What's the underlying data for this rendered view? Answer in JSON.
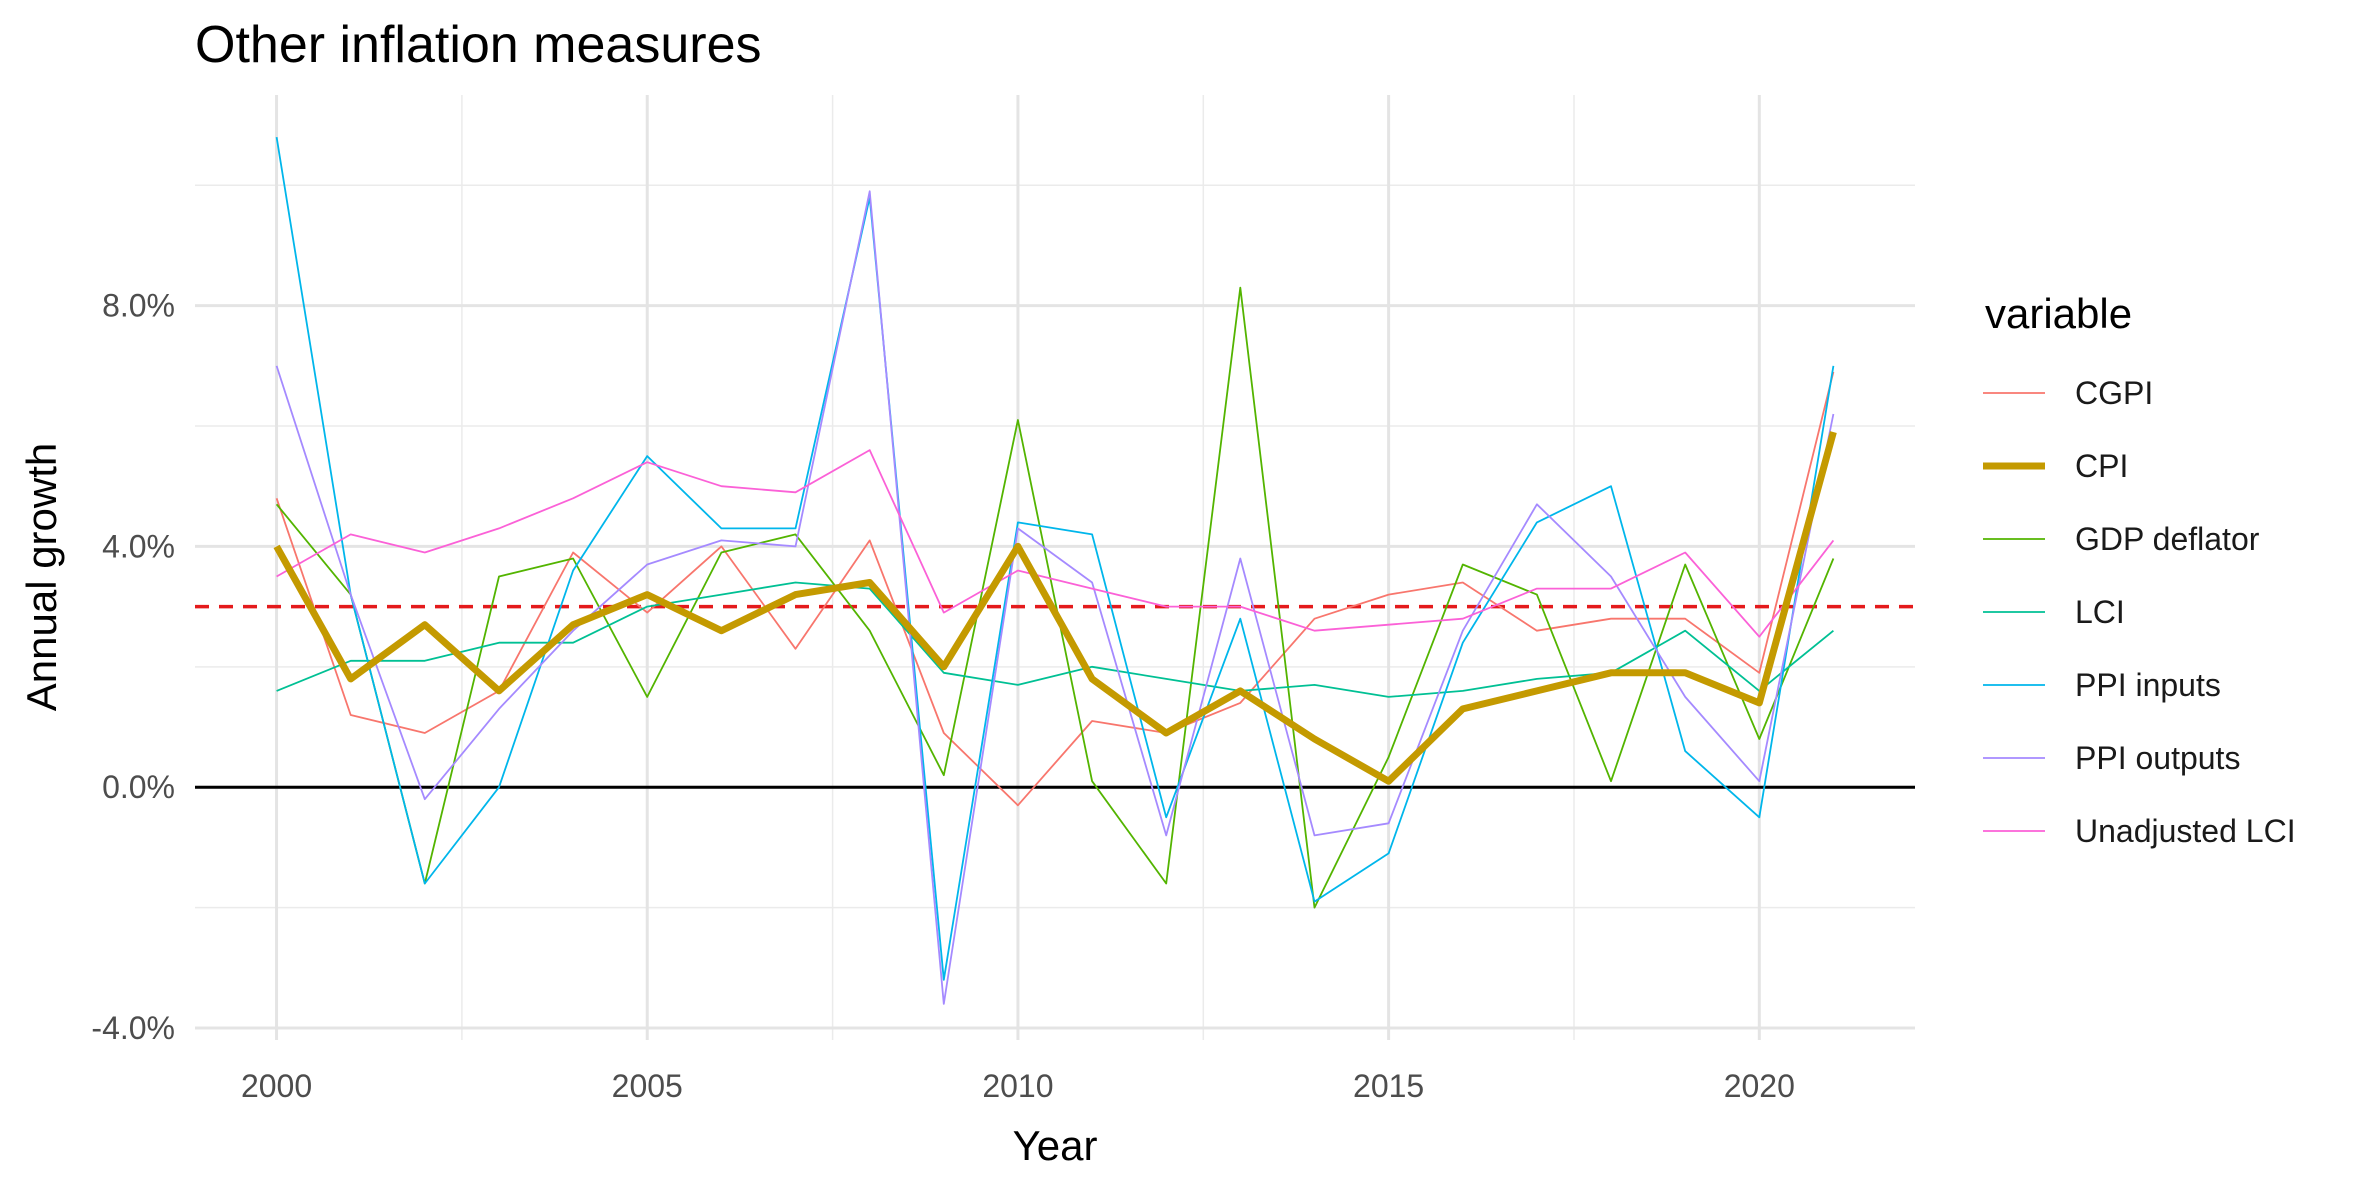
{
  "chart_data": {
    "type": "line",
    "title": "Other inflation measures",
    "xlabel": "Year",
    "ylabel": "Annual growth",
    "xlim": [
      1998.9,
      2022.1
    ],
    "ylim": [
      -4.2,
      11.5
    ],
    "x_ticks": [
      2000,
      2005,
      2010,
      2015,
      2020
    ],
    "x_tick_labels": [
      "2000",
      "2005",
      "2010",
      "2015",
      "2020"
    ],
    "y_ticks": [
      -4.0,
      0.0,
      4.0,
      8.0
    ],
    "y_tick_labels": [
      "-4.0%",
      "0.0%",
      "4.0%",
      "8.0%"
    ],
    "grid": true,
    "legend": {
      "title": "variable",
      "position": "right"
    },
    "reference_lines": [
      {
        "y": 0.0,
        "style": "solid",
        "color": "#000000"
      },
      {
        "y": 3.0,
        "style": "dashed",
        "color": "#e41a1c"
      }
    ],
    "x": [
      2000,
      2001,
      2002,
      2003,
      2004,
      2005,
      2006,
      2007,
      2008,
      2009,
      2010,
      2011,
      2012,
      2013,
      2014,
      2015,
      2016,
      2017,
      2018,
      2019,
      2020,
      2021
    ],
    "series": [
      {
        "name": "CGPI",
        "color": "#F8766D",
        "values": [
          4.8,
          1.2,
          0.9,
          1.6,
          3.9,
          2.9,
          4.0,
          2.3,
          4.1,
          0.9,
          -0.3,
          1.1,
          0.9,
          1.4,
          2.8,
          3.2,
          3.4,
          2.6,
          2.8,
          2.8,
          1.9,
          6.9
        ]
      },
      {
        "name": "CPI",
        "color": "#C49A00",
        "values": [
          4.0,
          1.8,
          2.7,
          1.6,
          2.7,
          3.2,
          2.6,
          3.2,
          3.4,
          2.0,
          4.0,
          1.8,
          0.9,
          1.6,
          0.8,
          0.1,
          1.3,
          1.6,
          1.9,
          1.9,
          1.4,
          5.9
        ]
      },
      {
        "name": "GDP deflator",
        "color": "#53B400",
        "values": [
          4.7,
          3.2,
          -1.6,
          3.5,
          3.8,
          1.5,
          3.9,
          4.2,
          2.6,
          0.2,
          6.1,
          0.1,
          -1.6,
          8.3,
          -2.0,
          0.5,
          3.7,
          3.2,
          0.1,
          3.7,
          0.8,
          3.8
        ]
      },
      {
        "name": "LCI",
        "color": "#00C094",
        "values": [
          1.6,
          2.1,
          2.1,
          2.4,
          2.4,
          3.0,
          3.2,
          3.4,
          3.3,
          1.9,
          1.7,
          2.0,
          1.8,
          1.6,
          1.7,
          1.5,
          1.6,
          1.8,
          1.9,
          2.6,
          1.6,
          2.6
        ]
      },
      {
        "name": "PPI inputs",
        "color": "#00B6EB",
        "values": [
          10.8,
          3.2,
          -1.6,
          0.0,
          3.6,
          5.5,
          4.3,
          4.3,
          9.8,
          -3.2,
          4.4,
          4.2,
          -0.5,
          2.8,
          -1.9,
          -1.1,
          2.4,
          4.4,
          5.0,
          0.6,
          -0.5,
          7.0
        ]
      },
      {
        "name": "PPI outputs",
        "color": "#A58AFF",
        "values": [
          7.0,
          3.2,
          -0.2,
          1.3,
          2.6,
          3.7,
          4.1,
          4.0,
          9.9,
          -3.6,
          4.3,
          3.4,
          -0.8,
          3.8,
          -0.8,
          -0.6,
          2.6,
          4.7,
          3.5,
          1.5,
          0.1,
          6.2
        ]
      },
      {
        "name": "Unadjusted LCI",
        "color": "#FB61D7",
        "values": [
          3.5,
          4.2,
          3.9,
          4.3,
          4.8,
          5.4,
          5.0,
          4.9,
          5.6,
          2.9,
          3.6,
          3.3,
          3.0,
          3.0,
          2.6,
          2.7,
          2.8,
          3.3,
          3.3,
          3.9,
          2.5,
          4.1
        ]
      }
    ],
    "highlight_series": "CPI"
  }
}
